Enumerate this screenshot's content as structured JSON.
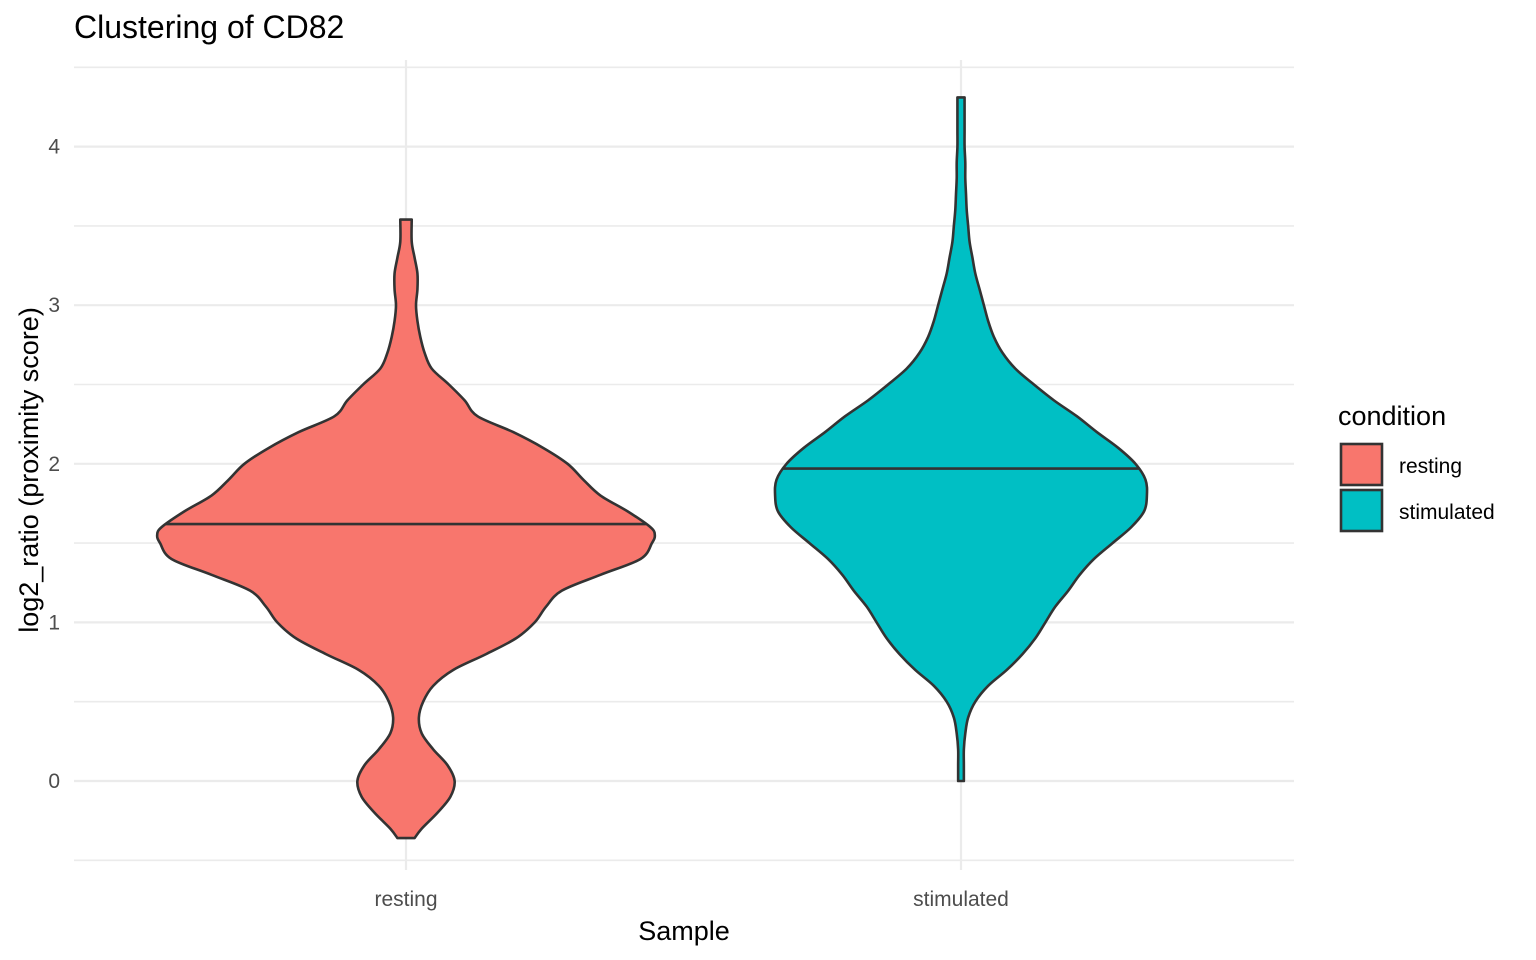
{
  "chart_data": {
    "type": "violin",
    "title": "Clustering of CD82",
    "xlabel": "Sample",
    "ylabel": "log2_ratio (proximity score)",
    "ylim": [
      -0.5,
      4.5
    ],
    "yticks": [
      0,
      1,
      2,
      3,
      4
    ],
    "categories": [
      "resting",
      "stimulated"
    ],
    "grid": true,
    "legend": {
      "title": "condition",
      "position": "right",
      "entries": [
        "resting",
        "stimulated"
      ]
    },
    "series": [
      {
        "name": "resting",
        "color": "#F8766D",
        "min": -0.36,
        "max": 3.54,
        "median": 1.62,
        "density": [
          [
            -0.36,
            0.06
          ],
          [
            -0.3,
            0.11
          ],
          [
            -0.2,
            0.22
          ],
          [
            -0.1,
            0.31
          ],
          [
            0.0,
            0.34
          ],
          [
            0.1,
            0.29
          ],
          [
            0.2,
            0.19
          ],
          [
            0.3,
            0.11
          ],
          [
            0.4,
            0.09
          ],
          [
            0.5,
            0.12
          ],
          [
            0.6,
            0.19
          ],
          [
            0.7,
            0.33
          ],
          [
            0.8,
            0.56
          ],
          [
            0.9,
            0.77
          ],
          [
            1.0,
            0.9
          ],
          [
            1.1,
            0.98
          ],
          [
            1.2,
            1.09
          ],
          [
            1.3,
            1.36
          ],
          [
            1.4,
            1.64
          ],
          [
            1.5,
            1.72
          ],
          [
            1.55,
            1.74
          ],
          [
            1.6,
            1.71
          ],
          [
            1.7,
            1.55
          ],
          [
            1.8,
            1.36
          ],
          [
            1.9,
            1.24
          ],
          [
            2.0,
            1.13
          ],
          [
            2.1,
            0.96
          ],
          [
            2.2,
            0.75
          ],
          [
            2.3,
            0.5
          ],
          [
            2.4,
            0.41
          ],
          [
            2.5,
            0.3
          ],
          [
            2.6,
            0.18
          ],
          [
            2.7,
            0.13
          ],
          [
            2.8,
            0.1
          ],
          [
            2.9,
            0.08
          ],
          [
            3.0,
            0.07
          ],
          [
            3.1,
            0.08
          ],
          [
            3.2,
            0.08
          ],
          [
            3.3,
            0.06
          ],
          [
            3.4,
            0.04
          ],
          [
            3.54,
            0.04
          ]
        ]
      },
      {
        "name": "stimulated",
        "color": "#00BFC4",
        "min": 0.0,
        "max": 4.31,
        "median": 1.97,
        "density": [
          [
            0.0,
            0.02
          ],
          [
            0.1,
            0.02
          ],
          [
            0.2,
            0.02
          ],
          [
            0.3,
            0.03
          ],
          [
            0.4,
            0.05
          ],
          [
            0.5,
            0.1
          ],
          [
            0.6,
            0.19
          ],
          [
            0.7,
            0.32
          ],
          [
            0.8,
            0.43
          ],
          [
            0.9,
            0.52
          ],
          [
            1.0,
            0.59
          ],
          [
            1.1,
            0.66
          ],
          [
            1.2,
            0.75
          ],
          [
            1.3,
            0.83
          ],
          [
            1.4,
            0.93
          ],
          [
            1.5,
            1.06
          ],
          [
            1.6,
            1.19
          ],
          [
            1.7,
            1.28
          ],
          [
            1.8,
            1.3
          ],
          [
            1.9,
            1.29
          ],
          [
            2.0,
            1.22
          ],
          [
            2.1,
            1.1
          ],
          [
            2.2,
            0.95
          ],
          [
            2.3,
            0.81
          ],
          [
            2.4,
            0.65
          ],
          [
            2.5,
            0.51
          ],
          [
            2.6,
            0.38
          ],
          [
            2.7,
            0.29
          ],
          [
            2.8,
            0.23
          ],
          [
            2.9,
            0.19
          ],
          [
            3.0,
            0.16
          ],
          [
            3.1,
            0.13
          ],
          [
            3.2,
            0.1
          ],
          [
            3.3,
            0.08
          ],
          [
            3.4,
            0.06
          ],
          [
            3.5,
            0.05
          ],
          [
            3.6,
            0.04
          ],
          [
            3.7,
            0.035
          ],
          [
            3.8,
            0.03
          ],
          [
            3.9,
            0.03
          ],
          [
            4.0,
            0.025
          ],
          [
            4.1,
            0.025
          ],
          [
            4.2,
            0.025
          ],
          [
            4.31,
            0.025
          ]
        ]
      }
    ]
  }
}
